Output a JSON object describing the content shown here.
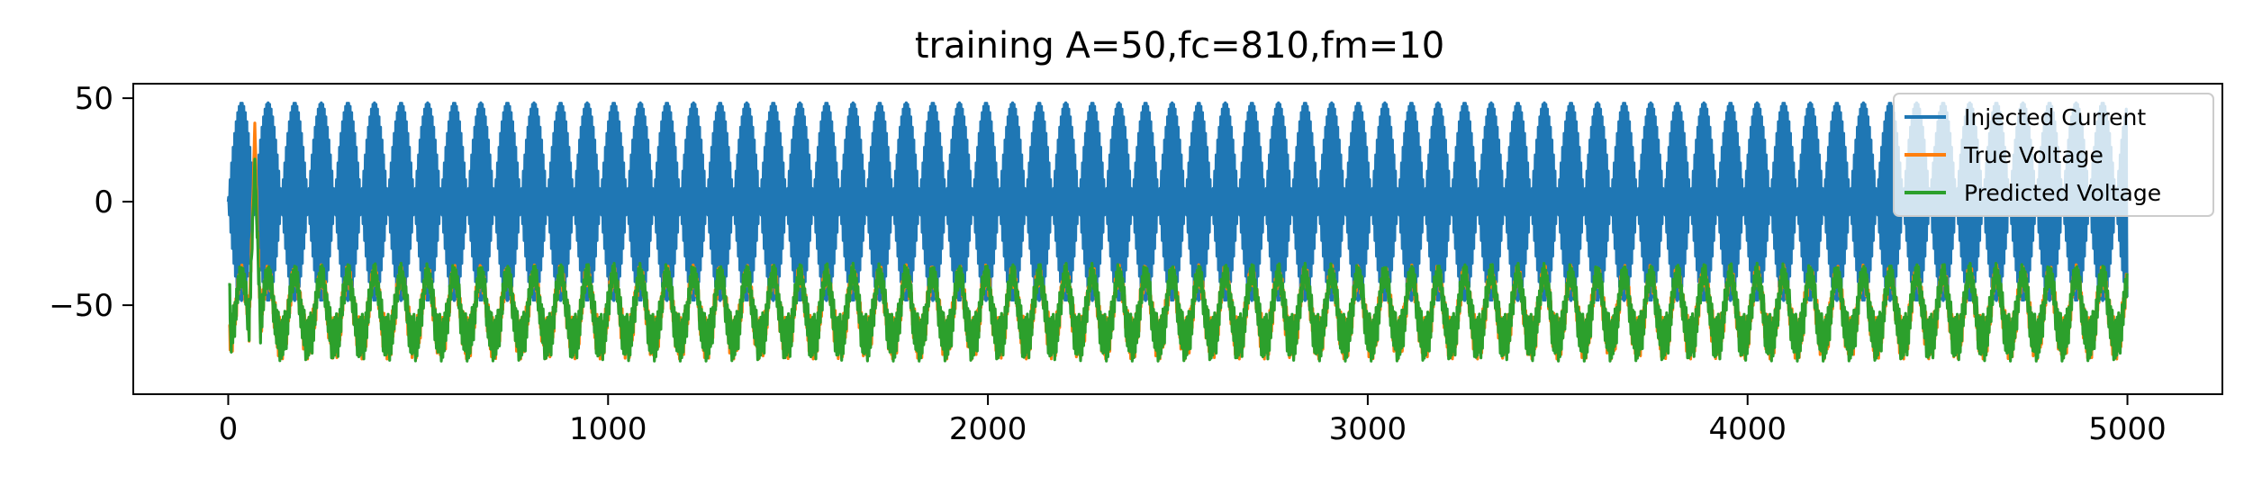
{
  "chart_data": {
    "type": "line",
    "title": "training A=50,fc=810,fm=10",
    "xlabel": "",
    "ylabel": "",
    "xlim": [
      -250,
      5250
    ],
    "ylim": [
      -93,
      57
    ],
    "xticks": [
      0,
      1000,
      2000,
      3000,
      4000,
      5000
    ],
    "xtick_labels": [
      "0",
      "1000",
      "2000",
      "3000",
      "4000",
      "5000"
    ],
    "yticks": [
      50,
      0,
      -50
    ],
    "ytick_labels": [
      "50",
      "0",
      "−50"
    ],
    "grid": false,
    "legend_position": "top-right",
    "num_samples": 5000,
    "series": [
      {
        "name": "Injected Current",
        "color": "#1f77b4",
        "amplitude": 50,
        "modulation_period": 70,
        "carrier_period": 4
      },
      {
        "name": "True Voltage",
        "color": "#ff7f0e",
        "baseline": -65,
        "envelope_min": -80,
        "envelope_max": -35,
        "initial_spike": 38
      },
      {
        "name": "Predicted Voltage",
        "color": "#2ca02c",
        "baseline": -65,
        "envelope_min": -82,
        "envelope_max": -35,
        "initial_spike": 25
      }
    ]
  }
}
